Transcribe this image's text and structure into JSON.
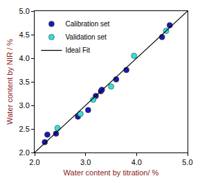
{
  "chart_data": {
    "type": "scatter",
    "x_label": "Water content by titration/ %",
    "y_label": "Water content by NIR / %",
    "xlim": [
      2,
      5
    ],
    "ylim": [
      2,
      5
    ],
    "xticks": [
      {
        "value": 2,
        "label": "2.0"
      },
      {
        "value": 3,
        "label": "3.0"
      },
      {
        "value": 4,
        "label": "4.0"
      },
      {
        "value": 5,
        "label": "5.0"
      }
    ],
    "yticks": [
      {
        "value": 2,
        "label": "2.0"
      },
      {
        "value": 2.5,
        "label": "2.5"
      },
      {
        "value": 3,
        "label": "3.0"
      },
      {
        "value": 3.5,
        "label": "3.5"
      },
      {
        "value": 4,
        "label": "4.0"
      },
      {
        "value": 4.5,
        "label": "4.5"
      },
      {
        "value": 5,
        "label": "5.0"
      }
    ],
    "grid": false,
    "legend": "top left",
    "series": [
      {
        "name": "Calibration set",
        "type": "scatter",
        "marker": "circle",
        "color": "#1a1ab0",
        "x": [
          2.2,
          2.25,
          2.42,
          2.85,
          3.05,
          3.2,
          3.3,
          3.32,
          3.6,
          3.8,
          4.5,
          4.65
        ],
        "values": [
          2.22,
          2.38,
          2.4,
          2.76,
          2.9,
          3.2,
          3.3,
          3.33,
          3.55,
          3.75,
          4.45,
          4.7
        ]
      },
      {
        "name": "Validation set",
        "type": "scatter",
        "marker": "circle",
        "color": "#33e0d8",
        "x": [
          2.45,
          2.9,
          3.15,
          3.5,
          3.95,
          4.58
        ],
        "values": [
          2.52,
          2.82,
          3.12,
          3.4,
          4.05,
          4.58
        ]
      },
      {
        "name": "Ideal Fit",
        "type": "line",
        "line_style": "solid",
        "color": "#000000",
        "x": [
          2,
          5
        ],
        "values": [
          2,
          5
        ]
      }
    ]
  }
}
